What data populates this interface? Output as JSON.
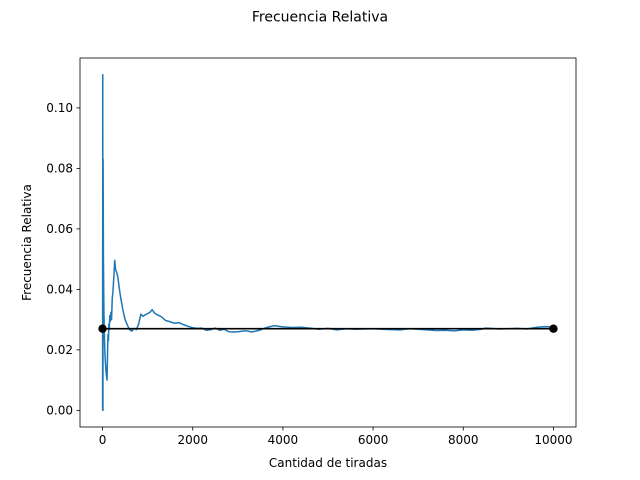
{
  "chart_data": {
    "type": "line",
    "title": "Frecuencia Relativa",
    "xlabel": "Cantidad de tiradas",
    "ylabel": "Frecuencia Relativa",
    "xlim": [
      -500,
      10500
    ],
    "ylim": [
      -0.0055,
      0.1165
    ],
    "xticks": [
      0,
      2000,
      4000,
      6000,
      8000,
      10000
    ],
    "xtick_labels": [
      "0",
      "2000",
      "4000",
      "6000",
      "8000",
      "10000"
    ],
    "yticks": [
      0.0,
      0.02,
      0.04,
      0.06,
      0.08,
      0.1
    ],
    "ytick_labels": [
      "0.00",
      "0.02",
      "0.04",
      "0.06",
      "0.08",
      "0.10"
    ],
    "grid": false,
    "series": [
      {
        "color": "#1f77b4",
        "x": [
          1,
          5,
          9,
          12,
          20,
          30,
          40,
          50,
          60,
          70,
          80,
          90,
          100,
          110,
          120,
          130,
          140,
          150,
          160,
          170,
          185,
          200,
          215,
          230,
          250,
          270,
          290,
          310,
          340,
          370,
          400,
          450,
          500,
          550,
          600,
          650,
          700,
          750,
          800,
          850,
          900,
          950,
          1000,
          1050,
          1100,
          1150,
          1200,
          1300,
          1400,
          1500,
          1600,
          1700,
          1800,
          1900,
          2000,
          2100,
          2200,
          2300,
          2400,
          2500,
          2600,
          2700,
          2800,
          2900,
          3000,
          3100,
          3200,
          3300,
          3400,
          3500,
          3600,
          3700,
          3800,
          3900,
          4000,
          4200,
          4400,
          4600,
          4800,
          5000,
          5200,
          5400,
          5600,
          5800,
          6000,
          6200,
          6400,
          6600,
          6800,
          7000,
          7200,
          7400,
          7600,
          7800,
          8000,
          8200,
          8400,
          8500,
          8600,
          8800,
          9000,
          9200,
          9400,
          9600,
          9800,
          10000
        ],
        "y": [
          0.0,
          0.111,
          0.0,
          0.083,
          0.05,
          0.033,
          0.025,
          0.02,
          0.0167,
          0.0143,
          0.0125,
          0.0111,
          0.01,
          0.0182,
          0.025,
          0.023,
          0.0286,
          0.0267,
          0.0313,
          0.0294,
          0.0324,
          0.03,
          0.037,
          0.0391,
          0.044,
          0.0496,
          0.0465,
          0.0458,
          0.044,
          0.0405,
          0.0375,
          0.0333,
          0.03,
          0.0282,
          0.0267,
          0.0262,
          0.0271,
          0.0267,
          0.0285,
          0.0318,
          0.0311,
          0.0316,
          0.032,
          0.0324,
          0.0333,
          0.0322,
          0.0317,
          0.031,
          0.0297,
          0.0293,
          0.0288,
          0.029,
          0.0283,
          0.0278,
          0.0273,
          0.0271,
          0.0272,
          0.0265,
          0.0267,
          0.0272,
          0.0265,
          0.0268,
          0.026,
          0.0259,
          0.026,
          0.0262,
          0.0263,
          0.0259,
          0.0262,
          0.0266,
          0.0272,
          0.0276,
          0.028,
          0.0278,
          0.0276,
          0.0274,
          0.0275,
          0.0272,
          0.0268,
          0.0271,
          0.0266,
          0.027,
          0.0268,
          0.0269,
          0.027,
          0.0268,
          0.0267,
          0.0266,
          0.027,
          0.0268,
          0.0266,
          0.0264,
          0.0265,
          0.0263,
          0.0266,
          0.0265,
          0.0268,
          0.0272,
          0.0271,
          0.0269,
          0.027,
          0.0271,
          0.0269,
          0.0274,
          0.0277,
          0.0276
        ]
      },
      {
        "color": "#000000",
        "marker": "circle",
        "x": [
          0,
          10000
        ],
        "y": [
          0.027,
          0.027
        ]
      }
    ]
  }
}
